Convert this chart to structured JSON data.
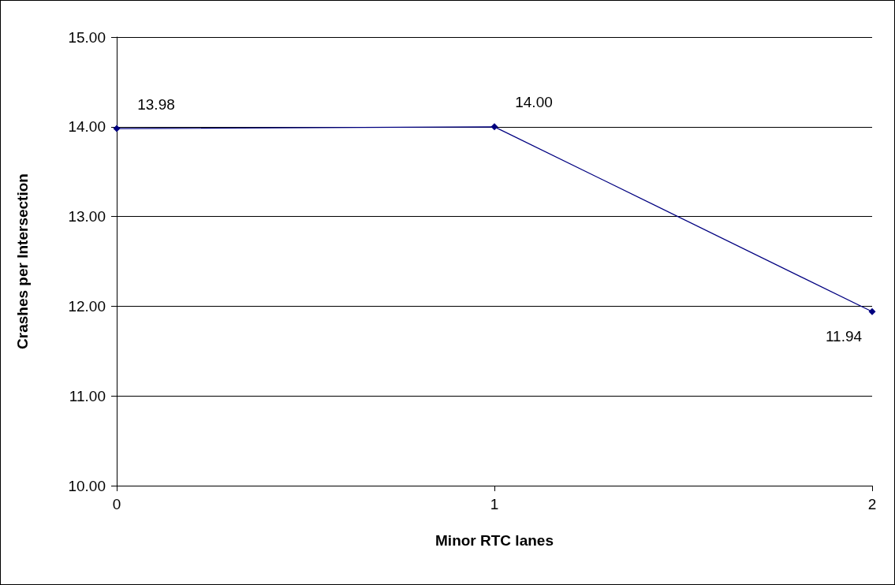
{
  "chart_data": {
    "type": "line",
    "xlabel": "Minor RTC lanes",
    "ylabel": "Crashes per Intersection",
    "x": [
      0,
      1,
      2
    ],
    "series": [
      {
        "color": "#000080",
        "values": [
          13.98,
          14.0,
          11.94
        ],
        "value_labels": [
          "13.98",
          "14.00",
          "11.94"
        ]
      }
    ],
    "xlim": [
      0,
      2
    ],
    "xticks": [
      0,
      1,
      2
    ],
    "ylim": [
      10,
      15
    ],
    "yticks": [
      {
        "value": 10,
        "label": "10.00"
      },
      {
        "value": 11,
        "label": "11.00"
      },
      {
        "value": 12,
        "label": "12.00"
      },
      {
        "value": 13,
        "label": "13.00"
      },
      {
        "value": 14,
        "label": "14.00"
      },
      {
        "value": 15,
        "label": "15.00"
      }
    ],
    "grid": "y",
    "marker": "diamond",
    "line_style": "solid"
  }
}
